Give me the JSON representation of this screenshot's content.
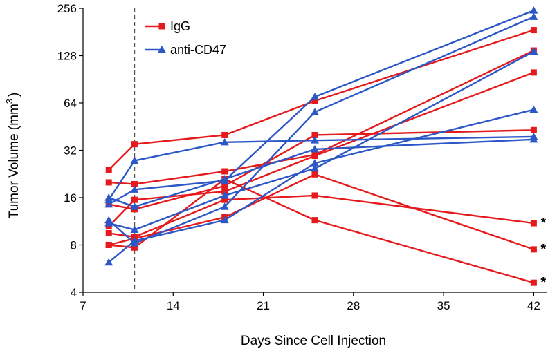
{
  "chart_data": {
    "type": "line",
    "xlabel": "Days Since Cell Injection",
    "ylabel": "Tumor Volume (mm",
    "ylabel_sup": "3",
    "ylabel_close": ")",
    "xlim": [
      7,
      43
    ],
    "ylim": [
      4,
      256
    ],
    "yscale": "log2",
    "xticks": [
      7,
      14,
      21,
      28,
      35,
      42
    ],
    "yticks": [
      4,
      8,
      16,
      32,
      64,
      128,
      256
    ],
    "grid": false,
    "legend_position": "top-left",
    "vertical_marker_x": 11,
    "groups": [
      {
        "name": "IgG",
        "color": "#e41a1c",
        "marker": "square"
      },
      {
        "name": "anti-CD47",
        "color": "#2b57c7",
        "marker": "triangle"
      }
    ],
    "series": [
      {
        "group": "IgG",
        "x": [
          9,
          11,
          18,
          25,
          42
        ],
        "y": [
          24,
          35,
          40,
          66,
          186
        ]
      },
      {
        "group": "IgG",
        "x": [
          9,
          11,
          18,
          25,
          42
        ],
        "y": [
          20,
          19.5,
          23.5,
          30,
          138
        ]
      },
      {
        "group": "IgG",
        "x": [
          9,
          11,
          18,
          25,
          42
        ],
        "y": [
          14.5,
          13.5,
          19,
          40,
          43
        ]
      },
      {
        "group": "IgG",
        "x": [
          9,
          11,
          18,
          25,
          42
        ],
        "y": [
          10.5,
          15.5,
          17.5,
          29.5,
          100
        ]
      },
      {
        "group": "IgG",
        "x": [
          9,
          11,
          18,
          25,
          42
        ],
        "y": [
          9.5,
          9,
          15.5,
          16.5,
          11
        ]
      },
      {
        "group": "IgG",
        "x": [
          9,
          11,
          18,
          25,
          42
        ],
        "y": [
          8,
          8.8,
          12,
          22.5,
          7.5
        ]
      },
      {
        "group": "IgG",
        "x": [
          9,
          11,
          18,
          25,
          42
        ],
        "y": [
          8,
          7.7,
          21,
          11.5,
          4.6
        ]
      },
      {
        "group": "anti-CD47",
        "x": [
          9,
          11,
          18,
          25,
          42
        ],
        "y": [
          15.5,
          27.5,
          36,
          37,
          39
        ]
      },
      {
        "group": "anti-CD47",
        "x": [
          9,
          11,
          18,
          25,
          42
        ],
        "y": [
          14.5,
          18,
          20.5,
          70,
          248
        ]
      },
      {
        "group": "anti-CD47",
        "x": [
          9,
          11,
          18,
          25,
          42
        ],
        "y": [
          11.5,
          8.2,
          14,
          56,
          226
        ]
      },
      {
        "group": "anti-CD47",
        "x": [
          9,
          11,
          18,
          25,
          42
        ],
        "y": [
          11,
          10,
          16.5,
          24.5,
          136
        ]
      },
      {
        "group": "anti-CD47",
        "x": [
          9,
          11,
          18,
          25,
          42
        ],
        "y": [
          6.2,
          8.5,
          11.5,
          26.5,
          58
        ]
      },
      {
        "group": "anti-CD47",
        "x": [
          9,
          11,
          18,
          25,
          42
        ],
        "y": [
          16,
          14,
          21,
          32.5,
          37.5
        ]
      }
    ],
    "annotations": [
      {
        "text": "*",
        "x": 42,
        "y": 11
      },
      {
        "text": "*",
        "x": 42,
        "y": 7.5
      },
      {
        "text": "*",
        "x": 42,
        "y": 4.6
      }
    ]
  }
}
